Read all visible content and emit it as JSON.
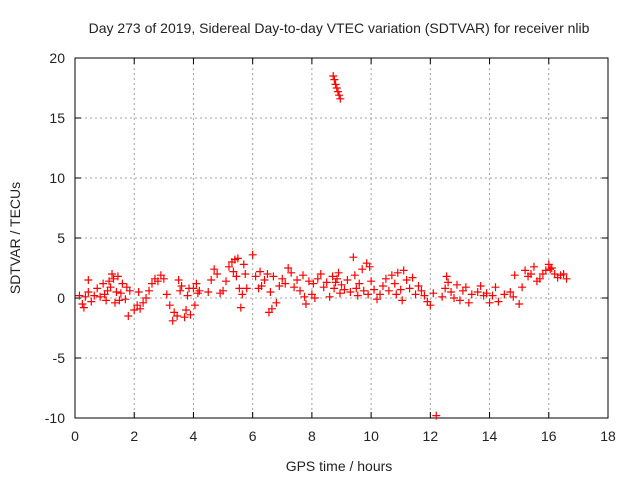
{
  "chart_data": {
    "type": "scatter",
    "title": "Day 273 of 2019, Sidereal Day-to-day VTEC variation (SDTVAR) for receiver nlib",
    "xlabel": "GPS time / hours",
    "ylabel": "SDTVAR / TECUs",
    "xlim": [
      0,
      18
    ],
    "ylim": [
      -10,
      20
    ],
    "xticks": [
      "0",
      "2",
      "4",
      "6",
      "8",
      "10",
      "12",
      "14",
      "16",
      "18"
    ],
    "yticks": [
      "-10",
      "-5",
      "0",
      "5",
      "10",
      "15",
      "20"
    ],
    "grid": true,
    "marker": "+",
    "color": "#ff0000",
    "series": [
      {
        "name": "SDTVAR",
        "points": [
          [
            0.15,
            0.2
          ],
          [
            0.25,
            -0.5
          ],
          [
            0.3,
            -0.8
          ],
          [
            0.35,
            0.1
          ],
          [
            0.45,
            0.5
          ],
          [
            0.45,
            1.5
          ],
          [
            0.55,
            -0.3
          ],
          [
            0.65,
            0.2
          ],
          [
            0.75,
            0.8
          ],
          [
            0.85,
            0.1
          ],
          [
            0.95,
            1.2
          ],
          [
            1.0,
            0.3
          ],
          [
            1.05,
            -0.2
          ],
          [
            1.1,
            0.6
          ],
          [
            1.15,
            1.4
          ],
          [
            1.2,
            0.9
          ],
          [
            1.25,
            2.0
          ],
          [
            1.3,
            1.6
          ],
          [
            1.35,
            -0.4
          ],
          [
            1.4,
            0.5
          ],
          [
            1.45,
            1.8
          ],
          [
            1.5,
            -0.2
          ],
          [
            1.55,
            0.4
          ],
          [
            1.6,
            1.2
          ],
          [
            1.7,
            -0.1
          ],
          [
            1.75,
            0.9
          ],
          [
            1.8,
            -1.5
          ],
          [
            1.85,
            0.6
          ],
          [
            2.0,
            -1.0
          ],
          [
            2.1,
            -0.6
          ],
          [
            2.15,
            0.5
          ],
          [
            2.2,
            -0.9
          ],
          [
            2.3,
            -0.4
          ],
          [
            2.4,
            0.0
          ],
          [
            2.5,
            0.6
          ],
          [
            2.6,
            1.2
          ],
          [
            2.7,
            1.6
          ],
          [
            2.8,
            1.4
          ],
          [
            2.9,
            1.9
          ],
          [
            3.0,
            1.6
          ],
          [
            3.1,
            0.3
          ],
          [
            3.2,
            -0.6
          ],
          [
            3.3,
            -1.9
          ],
          [
            3.35,
            -1.2
          ],
          [
            3.45,
            -1.5
          ],
          [
            3.5,
            1.5
          ],
          [
            3.55,
            0.6
          ],
          [
            3.6,
            1.0
          ],
          [
            3.7,
            -1.6
          ],
          [
            3.75,
            -1.0
          ],
          [
            3.8,
            0.2
          ],
          [
            3.85,
            0.8
          ],
          [
            3.9,
            -1.4
          ],
          [
            4.0,
            0.8
          ],
          [
            4.05,
            -0.6
          ],
          [
            4.1,
            1.2
          ],
          [
            4.15,
            0.4
          ],
          [
            4.2,
            0.6
          ],
          [
            4.5,
            0.5
          ],
          [
            4.6,
            1.5
          ],
          [
            4.7,
            2.4
          ],
          [
            4.8,
            2.0
          ],
          [
            4.9,
            0.4
          ],
          [
            5.0,
            0.6
          ],
          [
            5.1,
            1.4
          ],
          [
            5.2,
            2.6
          ],
          [
            5.3,
            3.0
          ],
          [
            5.35,
            2.2
          ],
          [
            5.4,
            3.2
          ],
          [
            5.45,
            1.8
          ],
          [
            5.5,
            3.3
          ],
          [
            5.55,
            0.8
          ],
          [
            5.6,
            -0.8
          ],
          [
            5.65,
            0.3
          ],
          [
            5.7,
            2.8
          ],
          [
            5.75,
            2.0
          ],
          [
            5.8,
            0.8
          ],
          [
            6.0,
            3.6
          ],
          [
            6.1,
            1.8
          ],
          [
            6.2,
            0.8
          ],
          [
            6.25,
            2.2
          ],
          [
            6.3,
            1.0
          ],
          [
            6.4,
            1.5
          ],
          [
            6.5,
            2.0
          ],
          [
            6.55,
            -1.2
          ],
          [
            6.6,
            0.5
          ],
          [
            6.65,
            -0.9
          ],
          [
            6.7,
            1.8
          ],
          [
            6.8,
            -0.4
          ],
          [
            6.9,
            1.0
          ],
          [
            7.0,
            1.6
          ],
          [
            7.1,
            1.2
          ],
          [
            7.2,
            2.5
          ],
          [
            7.3,
            2.1
          ],
          [
            7.4,
            0.9
          ],
          [
            7.5,
            1.5
          ],
          [
            7.6,
            0.6
          ],
          [
            7.7,
            1.9
          ],
          [
            7.75,
            0.1
          ],
          [
            7.8,
            -0.5
          ],
          [
            7.9,
            1.4
          ],
          [
            8.0,
            0.3
          ],
          [
            8.05,
            1.2
          ],
          [
            8.1,
            0.0
          ],
          [
            8.2,
            1.6
          ],
          [
            8.3,
            2.0
          ],
          [
            8.4,
            0.9
          ],
          [
            8.5,
            1.3
          ],
          [
            8.6,
            0.1
          ],
          [
            8.7,
            1.8
          ],
          [
            8.72,
            18.5
          ],
          [
            8.76,
            18.2
          ],
          [
            8.8,
            17.8
          ],
          [
            8.84,
            17.5
          ],
          [
            8.88,
            17.2
          ],
          [
            8.92,
            16.9
          ],
          [
            8.96,
            16.6
          ],
          [
            8.75,
            0.8
          ],
          [
            8.8,
            1.3
          ],
          [
            8.85,
            1.6
          ],
          [
            8.9,
            2.1
          ],
          [
            8.95,
            0.4
          ],
          [
            9.0,
            1.1
          ],
          [
            9.1,
            0.7
          ],
          [
            9.2,
            1.5
          ],
          [
            9.3,
            0.5
          ],
          [
            9.4,
            3.4
          ],
          [
            9.45,
            1.9
          ],
          [
            9.5,
            0.8
          ],
          [
            9.55,
            0.2
          ],
          [
            9.6,
            1.2
          ],
          [
            9.7,
            2.4
          ],
          [
            9.75,
            0.6
          ],
          [
            9.85,
            2.9
          ],
          [
            9.9,
            0.3
          ],
          [
            9.95,
            2.6
          ],
          [
            10.0,
            1.4
          ],
          [
            10.1,
            0.7
          ],
          [
            10.2,
            -0.1
          ],
          [
            10.3,
            0.3
          ],
          [
            10.4,
            1.0
          ],
          [
            10.5,
            1.6
          ],
          [
            10.6,
            0.6
          ],
          [
            10.7,
            1.9
          ],
          [
            10.8,
            1.2
          ],
          [
            10.85,
            0.3
          ],
          [
            10.9,
            2.1
          ],
          [
            11.0,
            0.7
          ],
          [
            11.05,
            -0.2
          ],
          [
            11.1,
            2.3
          ],
          [
            11.2,
            1.5
          ],
          [
            11.3,
            0.8
          ],
          [
            11.4,
            1.7
          ],
          [
            11.5,
            0.3
          ],
          [
            11.6,
            1.0
          ],
          [
            11.7,
            0.6
          ],
          [
            11.8,
            0.2
          ],
          [
            11.9,
            -0.3
          ],
          [
            12.0,
            -0.6
          ],
          [
            12.1,
            0.4
          ],
          [
            12.2,
            -9.8
          ],
          [
            12.4,
            0.1
          ],
          [
            12.5,
            0.8
          ],
          [
            12.55,
            1.8
          ],
          [
            12.6,
            1.3
          ],
          [
            12.7,
            0.5
          ],
          [
            12.8,
            0.0
          ],
          [
            12.9,
            1.1
          ],
          [
            13.0,
            -0.2
          ],
          [
            13.1,
            0.6
          ],
          [
            13.2,
            0.9
          ],
          [
            13.3,
            -0.4
          ],
          [
            13.4,
            0.3
          ],
          [
            13.6,
            0.5
          ],
          [
            13.7,
            1.0
          ],
          [
            13.8,
            0.2
          ],
          [
            13.9,
            0.4
          ],
          [
            14.0,
            -0.4
          ],
          [
            14.1,
            0.2
          ],
          [
            14.2,
            0.9
          ],
          [
            14.3,
            -0.3
          ],
          [
            14.5,
            0.3
          ],
          [
            14.7,
            0.5
          ],
          [
            14.8,
            0.1
          ],
          [
            14.85,
            1.9
          ],
          [
            15.0,
            -0.5
          ],
          [
            15.1,
            0.9
          ],
          [
            15.2,
            2.3
          ],
          [
            15.3,
            1.8
          ],
          [
            15.4,
            2.0
          ],
          [
            15.5,
            2.6
          ],
          [
            15.6,
            1.4
          ],
          [
            15.7,
            1.6
          ],
          [
            15.8,
            2.0
          ],
          [
            15.9,
            2.3
          ],
          [
            16.0,
            2.8
          ],
          [
            16.05,
            2.4
          ],
          [
            16.1,
            2.5
          ],
          [
            16.2,
            2.0
          ],
          [
            16.3,
            1.7
          ],
          [
            16.4,
            1.9
          ],
          [
            16.5,
            2.0
          ],
          [
            16.6,
            1.6
          ]
        ]
      }
    ]
  }
}
